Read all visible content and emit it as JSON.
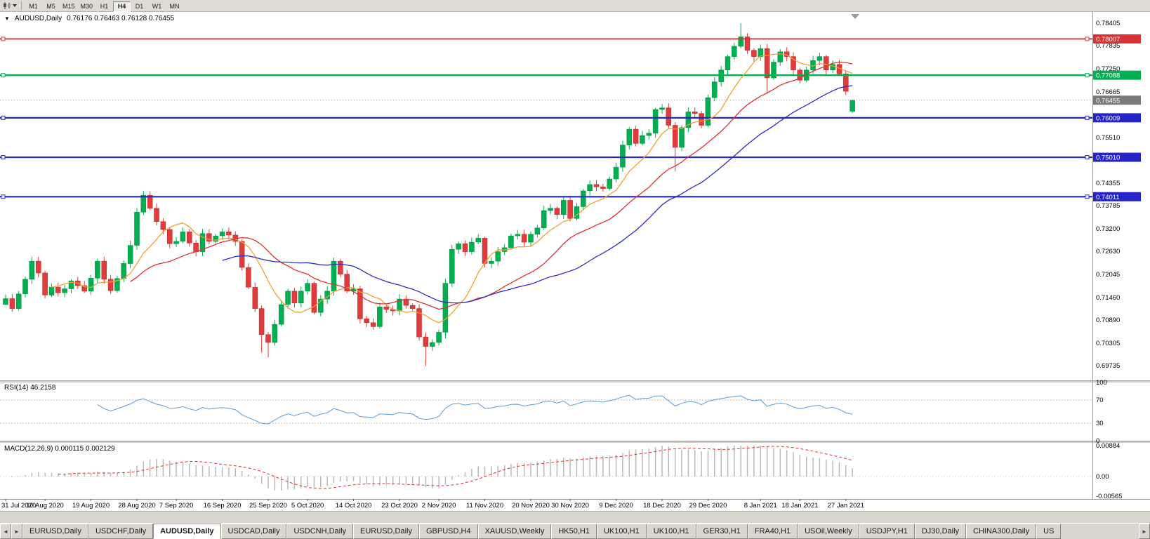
{
  "colors": {
    "candle_up": "#00b050",
    "candle_up_edge": "#008a3c",
    "candle_down": "#e23b3b",
    "candle_down_edge": "#b02424",
    "rsi_line": "#5b9bd5",
    "rsi_level": "#bdbdbd",
    "macd_hist": "#b9b9b9",
    "macd_signal": "#e03030",
    "axis_text": "#000000",
    "chrome": "#d9d6cf",
    "separator": "#9a9a9a",
    "current_price_line": "#999999"
  },
  "toolbar": {
    "timeframes": [
      "M1",
      "M5",
      "M15",
      "M30",
      "H1",
      "H4",
      "D1",
      "W1",
      "MN"
    ],
    "active_timeframe": "H4"
  },
  "chart": {
    "title": "AUDUSD,Daily",
    "ohlc": "0.76176 0.76463 0.76128 0.76455",
    "dropdown_glyph": "▼"
  },
  "price_axis": {
    "labels": [
      "0.78405",
      "0.77835",
      "0.77250",
      "0.76665",
      "0.75510",
      "0.74355",
      "0.73785",
      "0.73200",
      "0.72630",
      "0.72045",
      "0.71460",
      "0.70890",
      "0.70305",
      "0.69735"
    ]
  },
  "hlines": [
    {
      "label": "0.78007",
      "value": 0.78007,
      "color": "#d93232",
      "width": 1.8
    },
    {
      "label": "0.77088",
      "value": 0.77088,
      "color": "#00b050",
      "width": 2.4
    },
    {
      "label": "0.76009",
      "value": 0.76009,
      "color": "#2424c8",
      "width": 2.2
    },
    {
      "label": "0.75010",
      "value": 0.7501,
      "color": "#2424c8",
      "width": 2.2
    },
    {
      "label": "0.74011",
      "value": 0.74011,
      "color": "#2424c8",
      "width": 2.2
    }
  ],
  "current_price": {
    "label": "0.76455",
    "value": 0.76455,
    "badge_bg": "#7a7a7a"
  },
  "date_axis": {
    "labels": [
      "31 Jul 2020",
      "10 Aug 2020",
      "19 Aug 2020",
      "28 Aug 2020",
      "7 Sep 2020",
      "16 Sep 2020",
      "25 Sep 2020",
      "5 Oct 2020",
      "14 Oct 2020",
      "23 Oct 2020",
      "2 Nov 2020",
      "11 Nov 2020",
      "20 Nov 2020",
      "30 Nov 2020",
      "9 Dec 2020",
      "18 Dec 2020",
      "29 Dec 2020",
      "8 Jan 2021",
      "18 Jan 2021",
      "27 Jan 2021"
    ]
  },
  "rsi": {
    "label": "RSI(14) 46.2158",
    "period": 14,
    "current": 46.2158,
    "levels": [
      "100",
      "70",
      "30",
      "0"
    ]
  },
  "macd": {
    "label": "MACD(12,26,9) 0.000115 0.002129",
    "fast": 12,
    "slow": 26,
    "signal": 9,
    "values": [
      0.000115,
      0.002129
    ],
    "levels": [
      "0.00884",
      "0.00",
      "-0.00565"
    ]
  },
  "tabs": {
    "active_index": 2,
    "items": [
      "EURUSD,Daily",
      "USDCHF,Daily",
      "AUDUSD,Daily",
      "USDCAD,Daily",
      "USDCNH,Daily",
      "EURUSD,Daily",
      "GBPUSD,H4",
      "XAUUSD,Weekly",
      "HK50,H1",
      "UK100,H1",
      "UK100,H1",
      "GER30,H1",
      "FRA40,H1",
      "USOil,Weekly",
      "USDJPY,H1",
      "DJ30,Daily",
      "CHINA300,Daily",
      "US"
    ],
    "scroll_left_glyph": "◄",
    "scroll_right_glyph": "►"
  },
  "chart_data": {
    "type": "candlestick",
    "title": "AUDUSD Daily",
    "symbol": "AUDUSD",
    "timeframe": "Daily",
    "price_min": 0.6936,
    "price_max": 0.7869,
    "x_labels": [
      "31 Jul 2020",
      "10 Aug 2020",
      "19 Aug 2020",
      "28 Aug 2020",
      "7 Sep 2020",
      "16 Sep 2020",
      "25 Sep 2020",
      "5 Oct 2020",
      "14 Oct 2020",
      "23 Oct 2020",
      "2 Nov 2020",
      "11 Nov 2020",
      "20 Nov 2020",
      "30 Nov 2020",
      "9 Dec 2020",
      "18 Dec 2020",
      "29 Dec 2020",
      "8 Jan 2021",
      "18 Jan 2021",
      "27 Jan 2021"
    ],
    "label_indices": [
      0,
      6,
      13,
      20,
      26,
      33,
      40,
      46,
      53,
      60,
      66,
      73,
      80,
      86,
      93,
      100,
      107,
      115,
      121,
      128
    ],
    "closes": [
      0.7143,
      0.7118,
      0.7155,
      0.7192,
      0.7238,
      0.7208,
      0.7152,
      0.7172,
      0.7158,
      0.7168,
      0.7188,
      0.7176,
      0.7162,
      0.7195,
      0.7238,
      0.7192,
      0.7163,
      0.7194,
      0.7232,
      0.7278,
      0.7362,
      0.7405,
      0.7372,
      0.7338,
      0.7318,
      0.7282,
      0.7288,
      0.7312,
      0.7284,
      0.7262,
      0.7308,
      0.7288,
      0.7302,
      0.7312,
      0.7304,
      0.7288,
      0.7222,
      0.7172,
      0.7118,
      0.7052,
      0.7032,
      0.7078,
      0.7128,
      0.7162,
      0.7132,
      0.7162,
      0.7182,
      0.7108,
      0.7142,
      0.7162,
      0.7238,
      0.7205,
      0.7162,
      0.7168,
      0.7092,
      0.7082,
      0.7072,
      0.7122,
      0.7116,
      0.7112,
      0.7142,
      0.7126,
      0.7118,
      0.7046,
      0.7022,
      0.7032,
      0.7058,
      0.7182,
      0.7268,
      0.7282,
      0.7262,
      0.7286,
      0.7296,
      0.7232,
      0.7238,
      0.7262,
      0.7272,
      0.7302,
      0.7306,
      0.7286,
      0.7306,
      0.7322,
      0.7366,
      0.7372,
      0.7356,
      0.7392,
      0.7346,
      0.7376,
      0.7416,
      0.7432,
      0.7426,
      0.7422,
      0.7446,
      0.7476,
      0.7532,
      0.7572,
      0.7536,
      0.7556,
      0.7562,
      0.7622,
      0.7626,
      0.7582,
      0.7526,
      0.7576,
      0.7616,
      0.7612,
      0.7582,
      0.7652,
      0.7692,
      0.7722,
      0.7756,
      0.7782,
      0.7806,
      0.7772,
      0.7756,
      0.7776,
      0.7702,
      0.7742,
      0.7768,
      0.7756,
      0.7722,
      0.7696,
      0.7722,
      0.7746,
      0.7756,
      0.7722,
      0.7736,
      0.7712,
      0.7668,
      0.76455
    ],
    "overrides": {
      "0": {
        "o": 0.7128
      },
      "21": {
        "h": 0.7416
      },
      "39": {
        "l": 0.7006
      },
      "40": {
        "l": 0.6994
      },
      "64": {
        "l": 0.6973
      },
      "67": {
        "l": 0.7042
      },
      "102": {
        "l": 0.7465
      },
      "112": {
        "h": 0.7841
      },
      "116": {
        "l": 0.7662
      },
      "129": {
        "o": 0.76176,
        "h": 0.76463,
        "l": 0.76128,
        "c": 0.76455
      }
    },
    "moving_averages": [
      {
        "name": "fast",
        "period": 8,
        "color": "#f0a030"
      },
      {
        "name": "mid",
        "period": 20,
        "color": "#e03030"
      },
      {
        "name": "slow",
        "period": 34,
        "color": "#2c2cc4"
      }
    ],
    "horizontal_lines": [
      0.78007,
      0.77088,
      0.76009,
      0.7501,
      0.74011
    ],
    "last_price": 0.76455,
    "last_candle": {
      "open": 0.76176,
      "high": 0.76463,
      "low": 0.76128,
      "close": 0.76455
    },
    "indicators": [
      {
        "name": "RSI",
        "period": 14,
        "current": 46.2158,
        "axis": [
          0,
          100
        ],
        "levels": [
          30,
          70
        ]
      },
      {
        "name": "MACD",
        "fast": 12,
        "slow": 26,
        "signal": 9,
        "current": [
          0.000115,
          0.002129
        ],
        "axis": [
          -0.00565,
          0.00884
        ]
      }
    ]
  }
}
